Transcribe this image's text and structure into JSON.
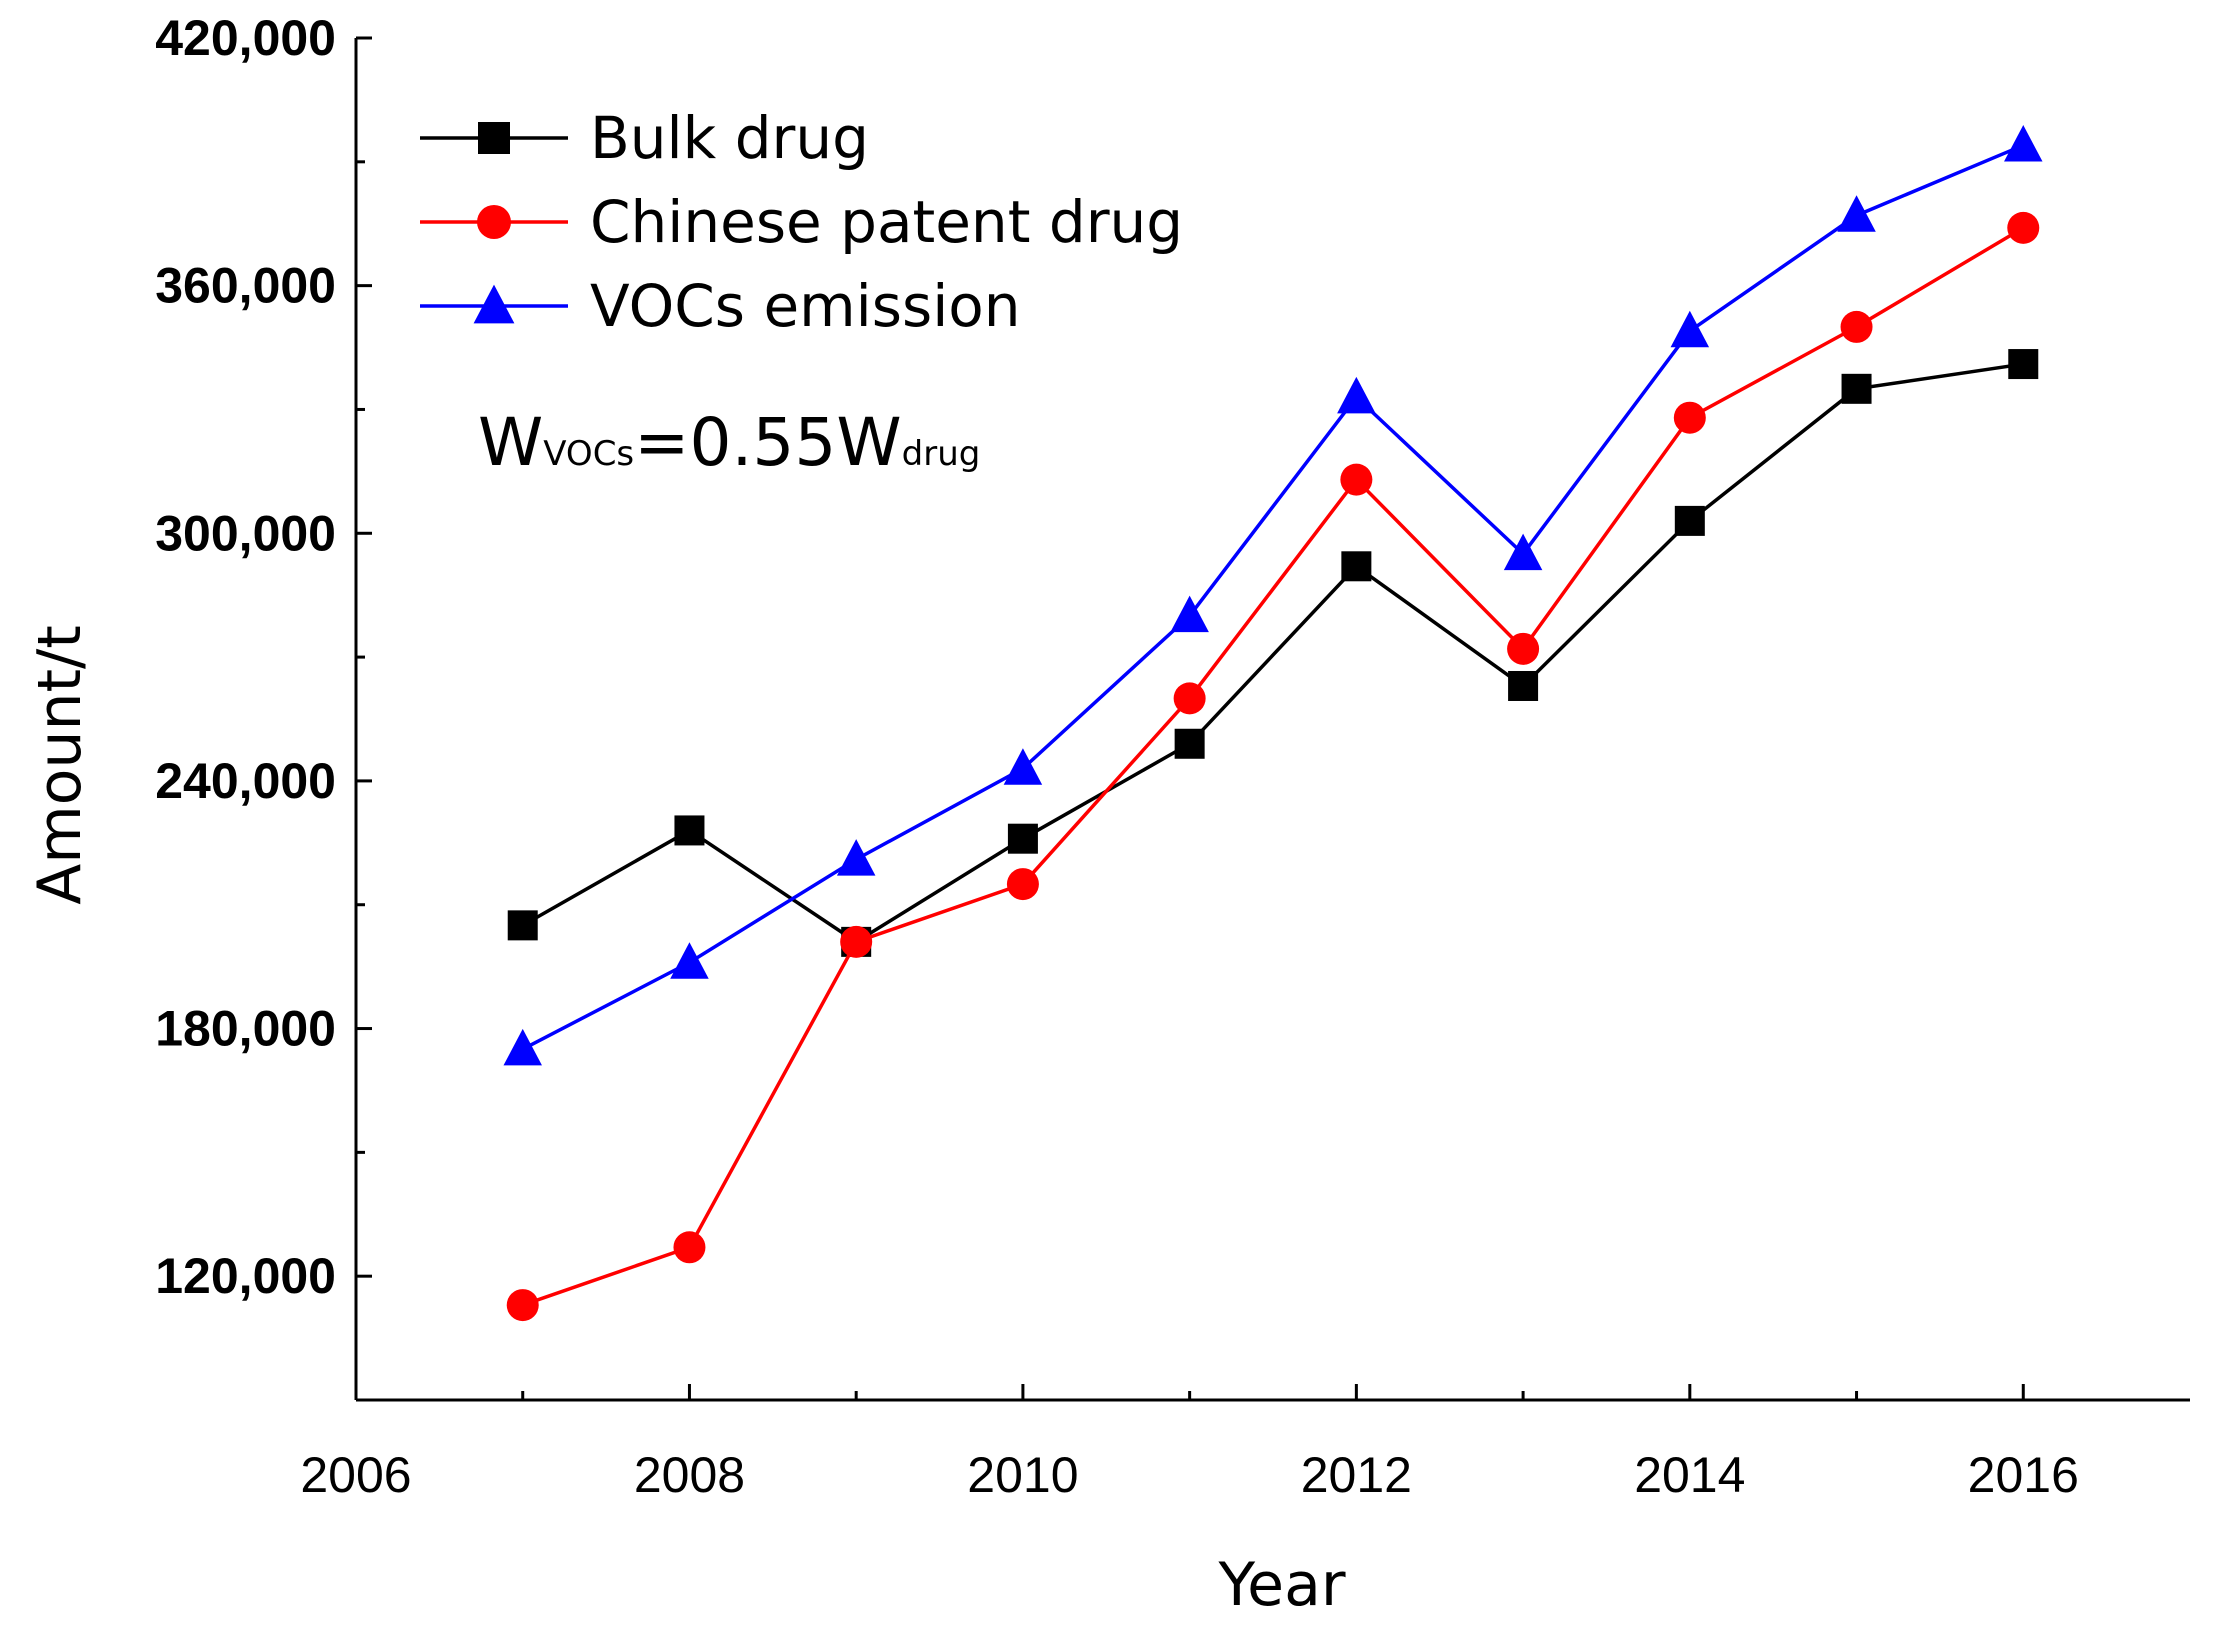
{
  "chart_data": {
    "type": "line",
    "title": "",
    "xlabel": "Year",
    "ylabel": "Amount/t",
    "xlim": [
      2006,
      2017
    ],
    "ylim": [
      90000,
      420000
    ],
    "x_ticks": [
      2006,
      2008,
      2010,
      2012,
      2014,
      2016
    ],
    "x_tick_labels": [
      "2006",
      "2008",
      "2010",
      "2012",
      "2014",
      "2016"
    ],
    "y_ticks": [
      120000,
      180000,
      240000,
      300000,
      360000,
      420000
    ],
    "y_tick_labels": [
      "120,000",
      "180,000",
      "240,000",
      "300,000",
      "360,000",
      "420,000"
    ],
    "y_minor_ticks": [
      150000,
      210000,
      270000,
      330000,
      390000
    ],
    "x": [
      2007,
      2008,
      2009,
      2010,
      2011,
      2012,
      2013,
      2014,
      2015,
      2016
    ],
    "series": [
      {
        "name": "Bulk drug",
        "color": "#000000",
        "marker": "square",
        "values": [
          205000,
          228000,
          201000,
          226000,
          249000,
          292000,
          263000,
          303000,
          335000,
          341000
        ]
      },
      {
        "name": "Chinese patent drug",
        "color": "#ff0000",
        "marker": "circle",
        "values": [
          113000,
          127000,
          201000,
          215000,
          260000,
          313000,
          272000,
          328000,
          350000,
          374000
        ]
      },
      {
        "name": "VOCs emission",
        "color": "#0000ff",
        "marker": "triangle",
        "values": [
          175000,
          196000,
          221000,
          243000,
          280000,
          333000,
          295000,
          349000,
          377000,
          394000
        ]
      }
    ],
    "legend_position": "top-left",
    "annotation": {
      "main": "W",
      "sub1": "VOCs",
      "mid": "=0.55W",
      "sub2": "drug"
    }
  }
}
